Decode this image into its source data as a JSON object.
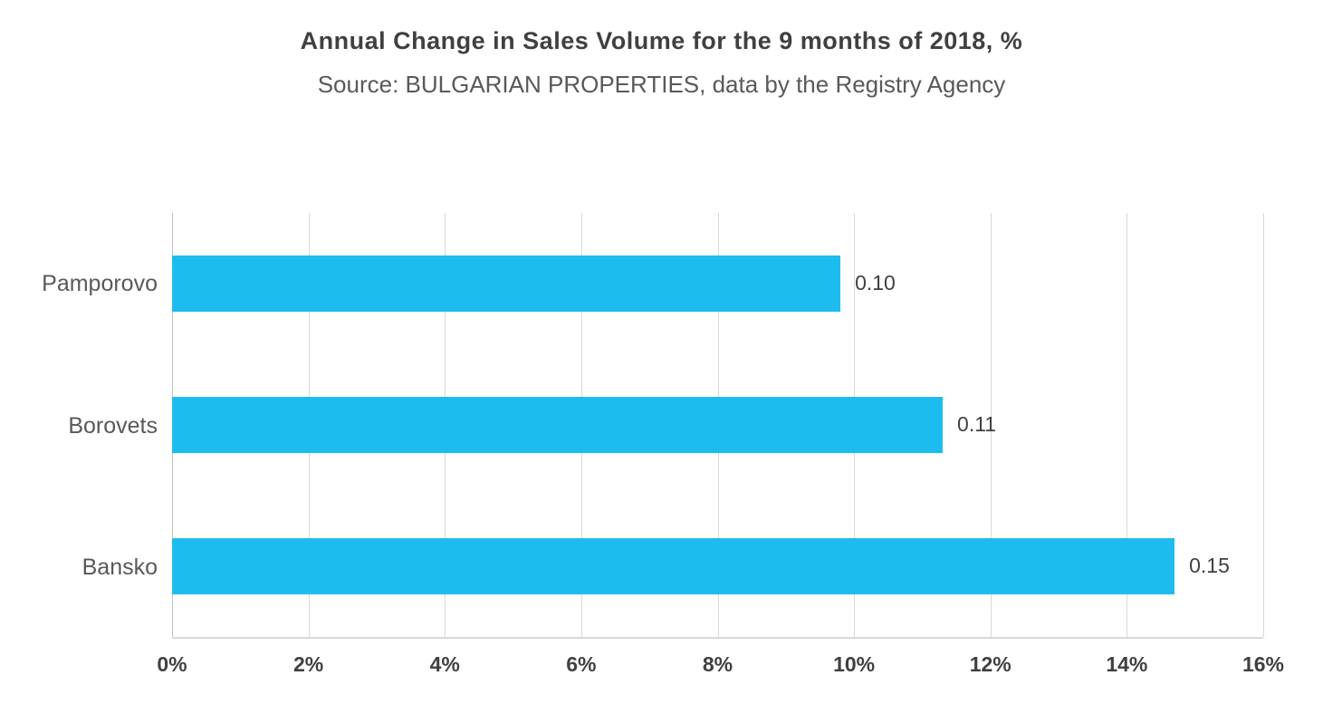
{
  "header": {
    "title": "Annual Change in Sales Volume for the 9 months of 2018, %",
    "subtitle": "Source: BULGARIAN PROPERTIES, data by the Registry Agency"
  },
  "chart_data": {
    "type": "bar",
    "orientation": "horizontal",
    "title": "Annual Change in Sales Volume for the 9 months of 2018, %",
    "subtitle": "Source: BULGARIAN PROPERTIES, data by the Registry Agency",
    "categories": [
      "Pamporovo",
      "Borovets",
      "Bansko"
    ],
    "values": [
      9.8,
      11.3,
      14.7
    ],
    "data_labels": [
      "0.10",
      "0.11",
      "0.15"
    ],
    "xlabel": "",
    "ylabel": "",
    "xlim": [
      0,
      16
    ],
    "x_ticks": [
      0,
      2,
      4,
      6,
      8,
      10,
      12,
      14,
      16
    ],
    "x_tick_suffix": "%",
    "grid": "vertical",
    "legend": "none",
    "colors": {
      "bar": "#1cbdee",
      "gridline": "#d9d9d9",
      "axis_line": "#bfbfbf",
      "tick_text": "#404040",
      "category_text": "#595959",
      "value_text": "#404040",
      "title_text": "#404040",
      "subtitle_text": "#595959"
    }
  }
}
